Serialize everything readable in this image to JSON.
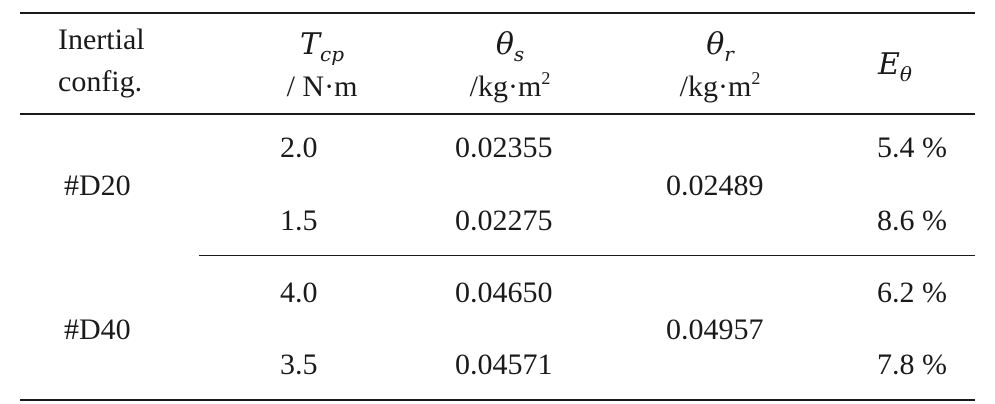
{
  "table": {
    "headers": {
      "config": {
        "line1": "Inertial",
        "line2": "config."
      },
      "torque": {
        "symbol": "T",
        "subscript": "cp",
        "unit": "/ N·m"
      },
      "theta_s": {
        "symbol": "θ",
        "subscript": "s",
        "unit": "/kg·m",
        "unit_exp": "2"
      },
      "theta_r": {
        "symbol": "θ",
        "subscript": "r",
        "unit": "/kg·m",
        "unit_exp": "2"
      },
      "error": {
        "symbol": "E",
        "subscript": "θ"
      }
    },
    "groups": [
      {
        "config": "#D20",
        "theta_r": "0.02489",
        "rows": [
          {
            "torque": "2.0",
            "theta_s": "0.02355",
            "error": "5.4 %"
          },
          {
            "torque": "1.5",
            "theta_s": "0.02275",
            "error": "8.6 %"
          }
        ]
      },
      {
        "config": "#D40",
        "theta_r": "0.04957",
        "rows": [
          {
            "torque": "4.0",
            "theta_s": "0.04650",
            "error": "6.2 %"
          },
          {
            "torque": "3.5",
            "theta_s": "0.04571",
            "error": "7.8 %"
          }
        ]
      }
    ]
  }
}
